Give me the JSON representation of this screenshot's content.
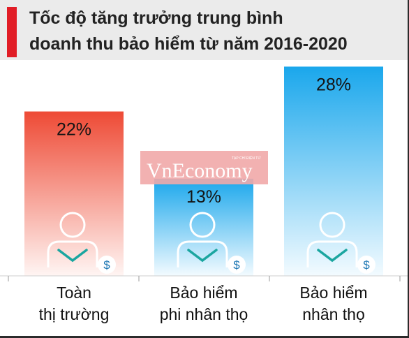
{
  "chart_data": {
    "type": "bar",
    "title_lines": [
      "Tốc độ tăng trưởng trung bình",
      "doanh thu bảo hiểm từ năm 2016-2020"
    ],
    "categories": [
      [
        "Toàn",
        "thị trường"
      ],
      [
        "Bảo hiểm",
        "phi nhân thọ"
      ],
      [
        "Bảo hiểm",
        "nhân thọ"
      ]
    ],
    "values": [
      22,
      13,
      28
    ],
    "value_labels": [
      "22%",
      "13%",
      "28%"
    ],
    "unit": "%",
    "ylim": [
      0,
      30
    ],
    "grid": false,
    "bar_styles": [
      "red-gradient",
      "blue-gradient",
      "blue-gradient"
    ]
  },
  "watermark": {
    "small": "TẠP CHÍ ĐIỆN TỬ",
    "big": "VnEconomy"
  },
  "icon_symbol": "$",
  "icons": [
    "person-icon",
    "dollar-coin-icon"
  ],
  "colors": {
    "accent": "#e11d26",
    "header_bg": "#ebebeb",
    "red_top": "#ee4a35",
    "red_bottom": "#fff5f3",
    "blue_top": "#1aa7ec",
    "blue_bottom": "#f3fbff",
    "watermark_bg": "#f1a8a8"
  }
}
